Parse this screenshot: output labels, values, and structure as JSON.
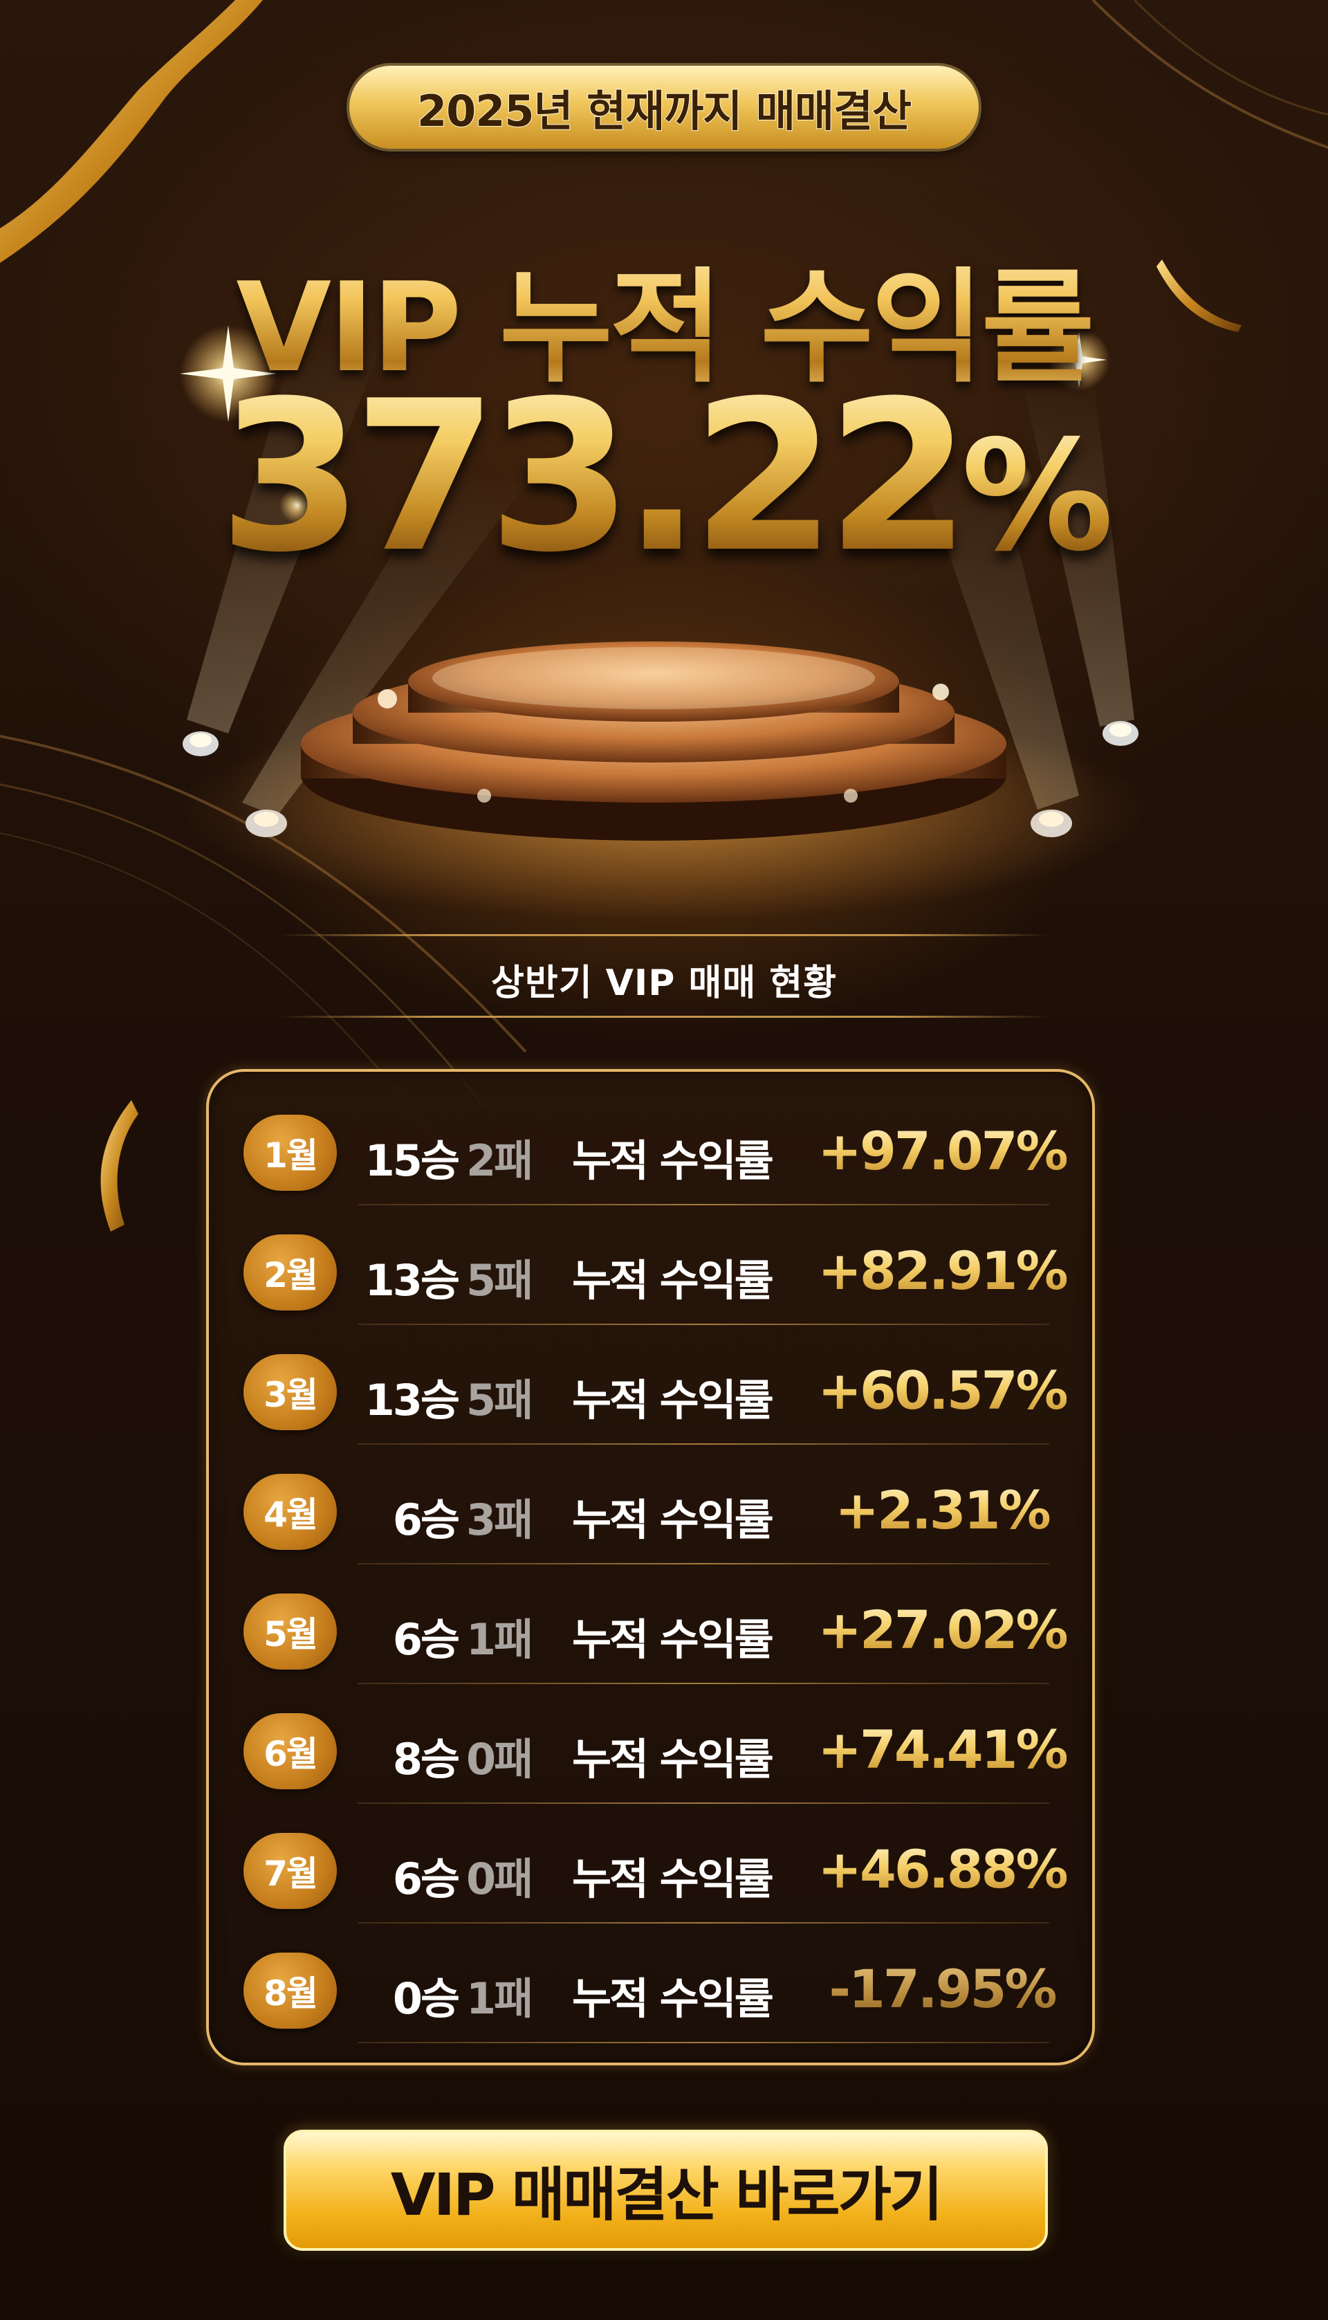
{
  "header": {
    "badge": "2025년 현재까지 매매결산",
    "headline": "VIP 누적 수익률",
    "total_return_number": "373.22",
    "total_return_unit": "%",
    "total_return": 373.22
  },
  "section": {
    "title": "상반기 VIP 매매 현황"
  },
  "table": {
    "cumulative_label": "누적 수익률",
    "rows": [
      {
        "month": "1월",
        "wins": "15승",
        "losses": "2패",
        "return": "+97.07%"
      },
      {
        "month": "2월",
        "wins": "13승",
        "losses": "5패",
        "return": "+82.91%"
      },
      {
        "month": "3월",
        "wins": "13승",
        "losses": "5패",
        "return": "+60.57%"
      },
      {
        "month": "4월",
        "wins": "6승",
        "losses": "3패",
        "return": "+2.31%"
      },
      {
        "month": "5월",
        "wins": "6승",
        "losses": "1패",
        "return": "+27.02%"
      },
      {
        "month": "6월",
        "wins": "8승",
        "losses": "0패",
        "return": "+74.41%"
      },
      {
        "month": "7월",
        "wins": "6승",
        "losses": "0패",
        "return": "+46.88%"
      },
      {
        "month": "8월",
        "wins": "0승",
        "losses": "1패",
        "return": "-17.95%"
      }
    ]
  },
  "cta": {
    "label": "VIP 매매결산 바로가기"
  },
  "colors": {
    "background": "#1c0f08",
    "gold": "#f2c45a",
    "month_badge": "#c57d1c",
    "loss_gray": "#a9a4a0",
    "cta": "#f2b21c"
  },
  "icons": [
    "ribbon-decoration",
    "spotlight-icon",
    "podium-illustration",
    "sparkle-icon"
  ]
}
